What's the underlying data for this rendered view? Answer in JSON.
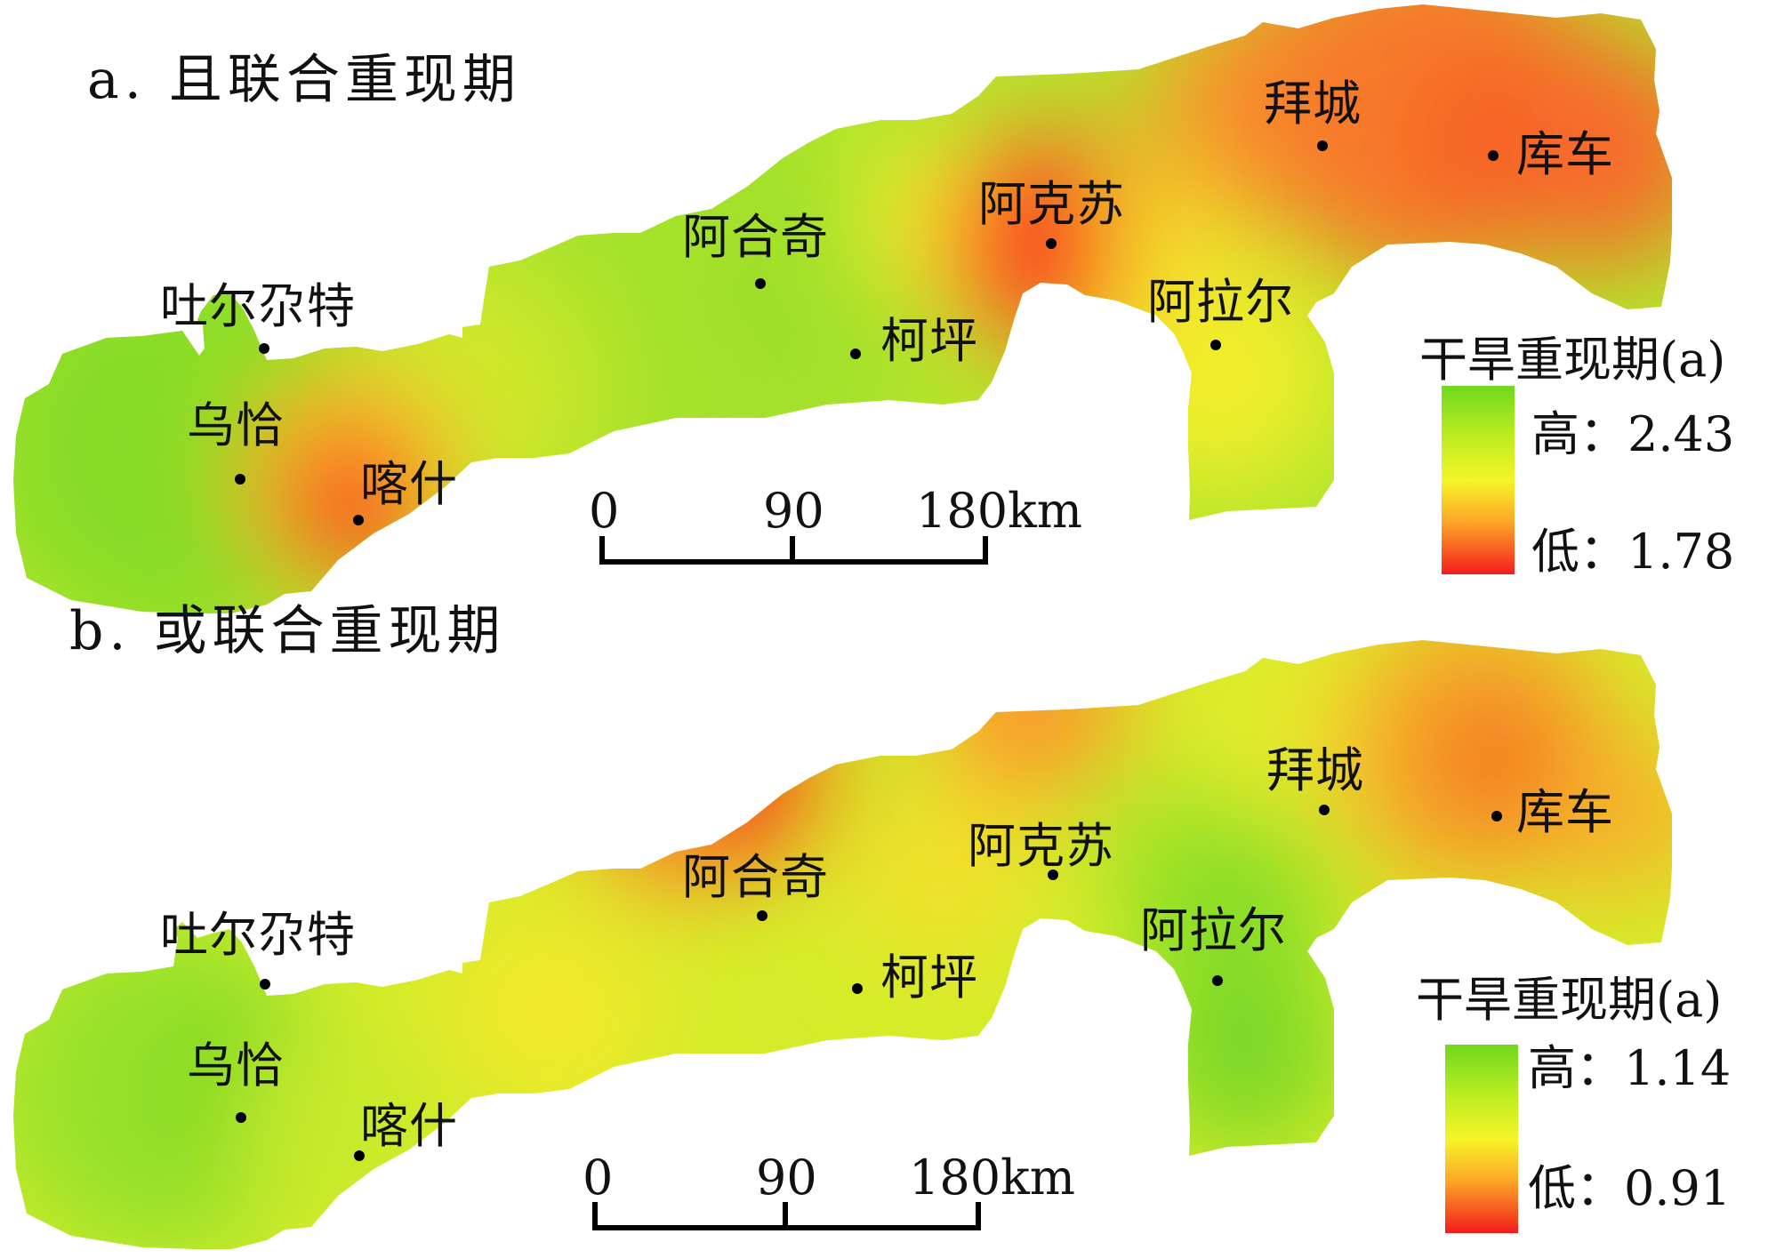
{
  "panel_a": {
    "title": "a. 且联合重现期",
    "cities": {
      "tuerduote": "吐尔尕特",
      "wuqia": "乌恰",
      "kashi": "喀什",
      "aheqi": "阿合奇",
      "keping": "柯坪",
      "akesu": "阿克苏",
      "alaer": "阿拉尔",
      "baicheng": "拜城",
      "kuche": "库车"
    },
    "scale": {
      "t0": "0",
      "t1": "90",
      "t2": "180km"
    },
    "legend": {
      "title": "干旱重现期(a)",
      "high": "高：2.43",
      "low": "低：1.78"
    }
  },
  "panel_b": {
    "title": "b. 或联合重现期",
    "cities": {
      "tuerduote": "吐尔尕特",
      "wuqia": "乌恰",
      "kashi": "喀什",
      "aheqi": "阿合奇",
      "keping": "柯坪",
      "akesu": "阿克苏",
      "alaer": "阿拉尔",
      "baicheng": "拜城",
      "kuche": "库车"
    },
    "scale": {
      "t0": "0",
      "t1": "90",
      "t2": "180km"
    },
    "legend": {
      "title": "干旱重现期(a)",
      "high": "高：1.14",
      "low": "低：0.91"
    }
  },
  "colors": {
    "high": "#6fd81f",
    "mid": "#f5f528",
    "low": "#f41c1c"
  }
}
